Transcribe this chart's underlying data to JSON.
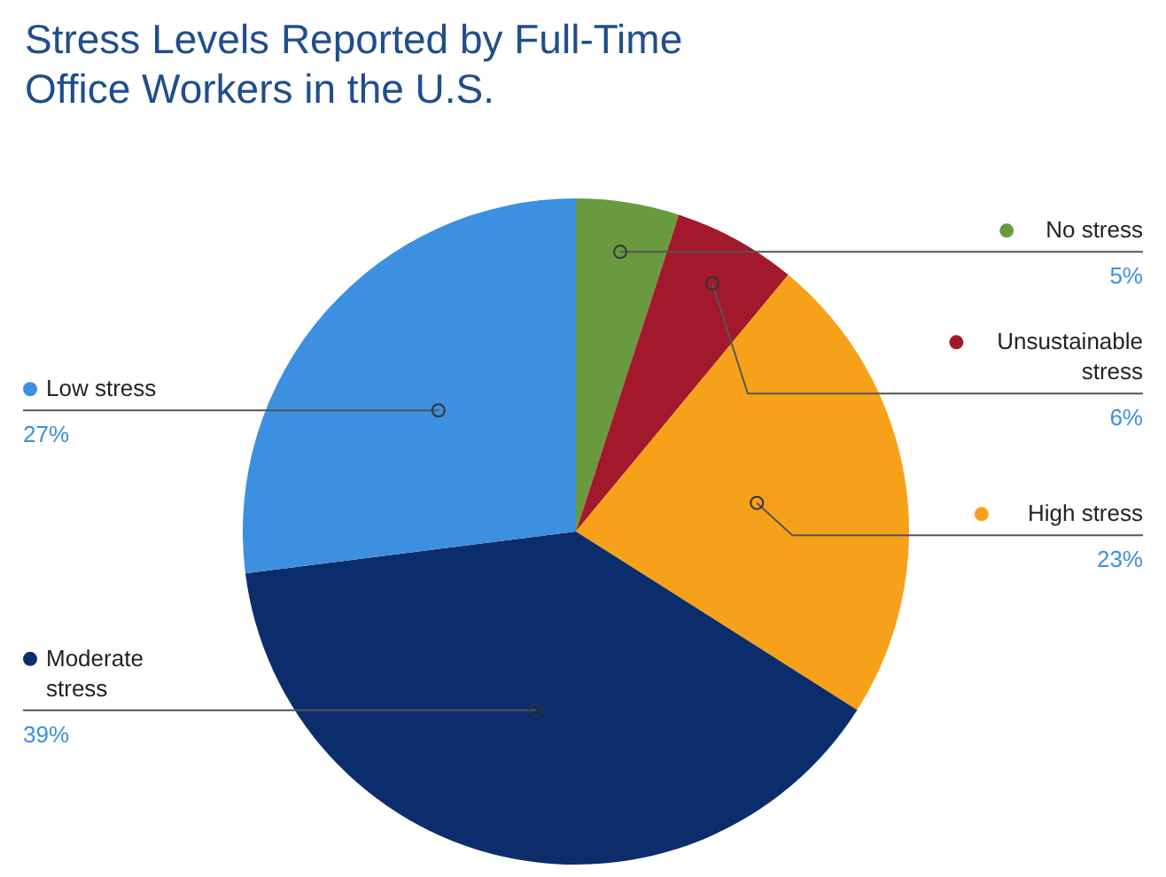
{
  "chart_data": {
    "type": "pie",
    "title": "Stress Levels Reported by Full-Time Office Workers in the U.S.",
    "categories": [
      "No stress",
      "Unsustainable stress",
      "High stress",
      "Moderate stress",
      "Low stress"
    ],
    "values": [
      5,
      6,
      23,
      39,
      27
    ],
    "value_labels": [
      "5%",
      "6%",
      "23%",
      "39%",
      "27%"
    ],
    "legend": "right",
    "colors": [
      "#6a9a3f",
      "#a3192c",
      "#f7a11a",
      "#0c2d6b",
      "#3d8fe0"
    ]
  }
}
